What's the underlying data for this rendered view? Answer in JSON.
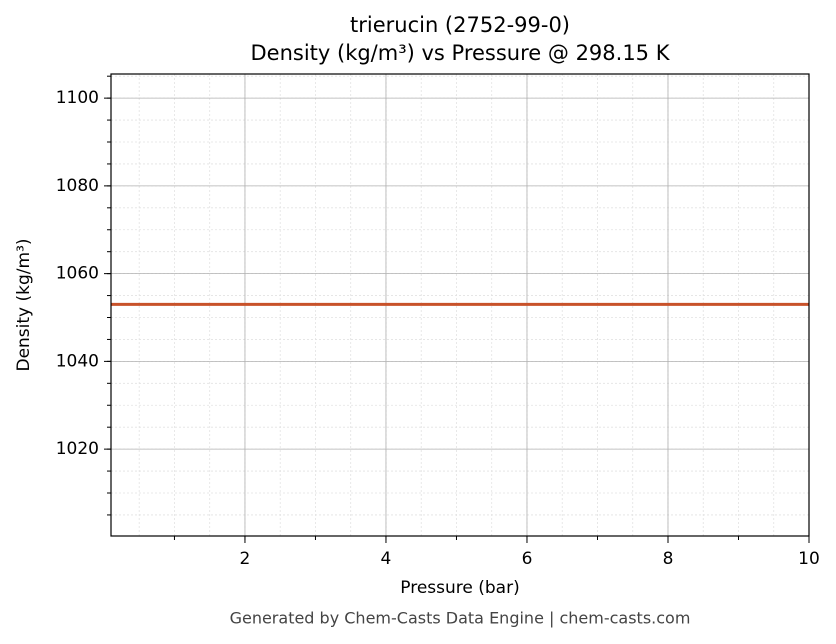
{
  "chart_data": {
    "type": "line",
    "title": "trierucin (2752-99-0)",
    "subtitle": "Density (kg/m³) vs Pressure @ 298.15 K",
    "x_label": "Pressure (bar)",
    "y_label": "Density (kg/m³)",
    "x": [
      0.1,
      10
    ],
    "series": [
      {
        "name": "Density",
        "color": "#c8522a",
        "values": [
          1053,
          1053
        ]
      }
    ],
    "xlim": [
      0.1,
      10
    ],
    "xticks": [
      2,
      4,
      6,
      8,
      10
    ],
    "ylim": [
      1000.2,
      1105.5
    ],
    "yticks": [
      1020,
      1040,
      1060,
      1080,
      1100
    ],
    "grid": true
  },
  "footer": "Generated by Chem-Casts Data Engine | chem-casts.com"
}
